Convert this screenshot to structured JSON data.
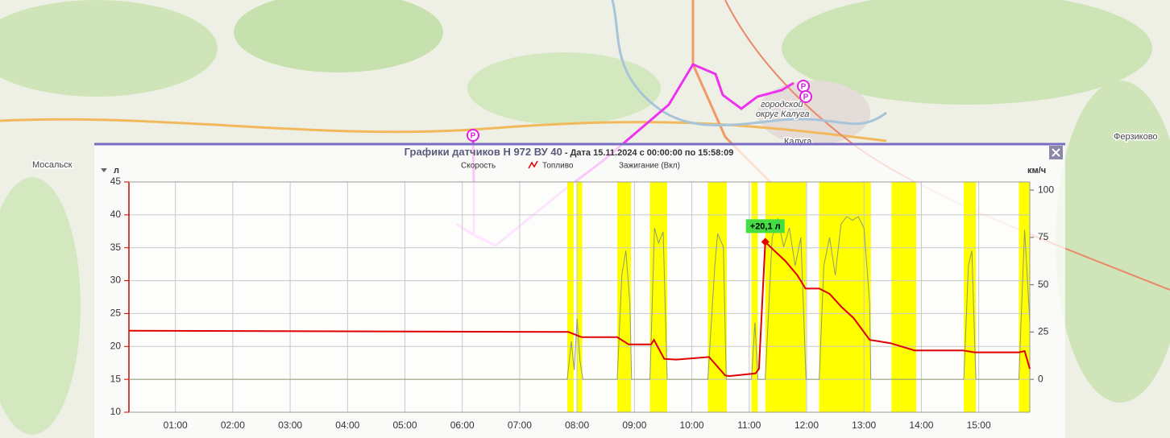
{
  "map": {
    "labels": [
      "Мосальск",
      "Калуга",
      "Ферзиково",
      "городской",
      "округ Калуга"
    ],
    "parking": "P"
  },
  "chart_data": {
    "type": "line",
    "title": "Графики датчиков Н 972 ВУ 40",
    "subtitle": " - Дата 15.11.2024 с 00:00:00 по 15:58:09",
    "y_label": "л",
    "y2_label": "км/ч",
    "xlim": [
      0.19,
      15.89
    ],
    "xticks": [
      {
        "value": 1,
        "label": "01:00"
      },
      {
        "value": 2,
        "label": "02:00"
      },
      {
        "value": 3,
        "label": "03:00"
      },
      {
        "value": 4,
        "label": "04:00"
      },
      {
        "value": 5,
        "label": "05:00"
      },
      {
        "value": 6,
        "label": "06:00"
      },
      {
        "value": 7,
        "label": "07:00"
      },
      {
        "value": 8,
        "label": "08:00"
      },
      {
        "value": 9,
        "label": "09:00"
      },
      {
        "value": 10,
        "label": "10:00"
      },
      {
        "value": 11,
        "label": "11:00"
      },
      {
        "value": 12,
        "label": "12:00"
      },
      {
        "value": 13,
        "label": "13:00"
      },
      {
        "value": 14,
        "label": "14:00"
      },
      {
        "value": 15,
        "label": "15:00"
      }
    ],
    "ylim": [
      10,
      45
    ],
    "yticks": [
      10,
      15,
      20,
      25,
      30,
      35,
      40,
      45
    ],
    "y2lim": [
      -17.4,
      104.3
    ],
    "y2ticks": [
      0,
      25,
      50,
      75,
      100
    ],
    "grid": true,
    "series": [
      {
        "name": "Скорость",
        "color": "#8e9c70",
        "axis": "y2",
        "x": [
          0.19,
          7.83,
          7.9,
          7.95,
          8.0,
          8.05,
          8.1,
          8.7,
          8.78,
          8.85,
          8.92,
          8.95,
          9.27,
          9.35,
          9.42,
          9.5,
          9.57,
          10.28,
          10.4,
          10.45,
          10.55,
          10.6,
          11.04,
          11.1,
          11.15,
          11.28,
          11.4,
          11.5,
          11.6,
          11.7,
          11.8,
          11.9,
          11.99,
          12.22,
          12.3,
          12.4,
          12.5,
          12.6,
          12.7,
          12.8,
          12.9,
          13.0,
          13.1,
          13.12,
          13.48,
          13.9,
          14.74,
          14.82,
          14.88,
          14.95,
          15.7,
          15.75,
          15.8,
          15.89
        ],
        "values": [
          0,
          0,
          20,
          5,
          32,
          10,
          0,
          0,
          55,
          68,
          40,
          0,
          0,
          80,
          72,
          78,
          0,
          0,
          60,
          77,
          70,
          0,
          0,
          30,
          0,
          0,
          75,
          85,
          70,
          80,
          60,
          75,
          0,
          0,
          60,
          75,
          55,
          82,
          86,
          84,
          86,
          80,
          40,
          0,
          0,
          0,
          0,
          60,
          68,
          0,
          0,
          40,
          79,
          30
        ]
      },
      {
        "name": "Топливо",
        "color": "#e00000",
        "x": [
          0.19,
          7.85,
          8.08,
          8.7,
          8.9,
          9.29,
          9.34,
          9.52,
          9.73,
          10.3,
          10.58,
          10.65,
          11.11,
          11.17,
          11.28,
          11.42,
          11.63,
          11.84,
          11.98,
          12.22,
          12.4,
          12.61,
          12.82,
          13.1,
          13.46,
          13.88,
          14.72,
          14.93,
          15.7,
          15.8,
          15.89
        ],
        "values": [
          22.4,
          22.2,
          21.4,
          21.4,
          20.3,
          20.3,
          21.0,
          18.1,
          18.0,
          18.4,
          15.6,
          15.5,
          15.9,
          16.6,
          35.9,
          34.7,
          33.0,
          30.8,
          28.8,
          28.8,
          28.0,
          26.0,
          24.3,
          21.0,
          20.5,
          19.4,
          19.4,
          19.1,
          19.1,
          19.3,
          16.6
        ]
      }
    ],
    "ignition": {
      "name": "Зажигание (Вкл)",
      "color": "#ffff00",
      "intervals": [
        [
          7.83,
          7.94
        ],
        [
          7.99,
          8.09
        ],
        [
          8.7,
          8.94
        ],
        [
          9.27,
          9.57
        ],
        [
          10.28,
          10.61
        ],
        [
          11.04,
          11.15
        ],
        [
          11.28,
          11.99
        ],
        [
          12.22,
          13.12
        ],
        [
          13.48,
          13.91
        ],
        [
          14.74,
          14.95
        ],
        [
          15.7,
          15.89
        ]
      ]
    },
    "annotations": [
      {
        "text": "+20,1 л",
        "x": 11.28,
        "y": 35.9
      }
    ]
  }
}
